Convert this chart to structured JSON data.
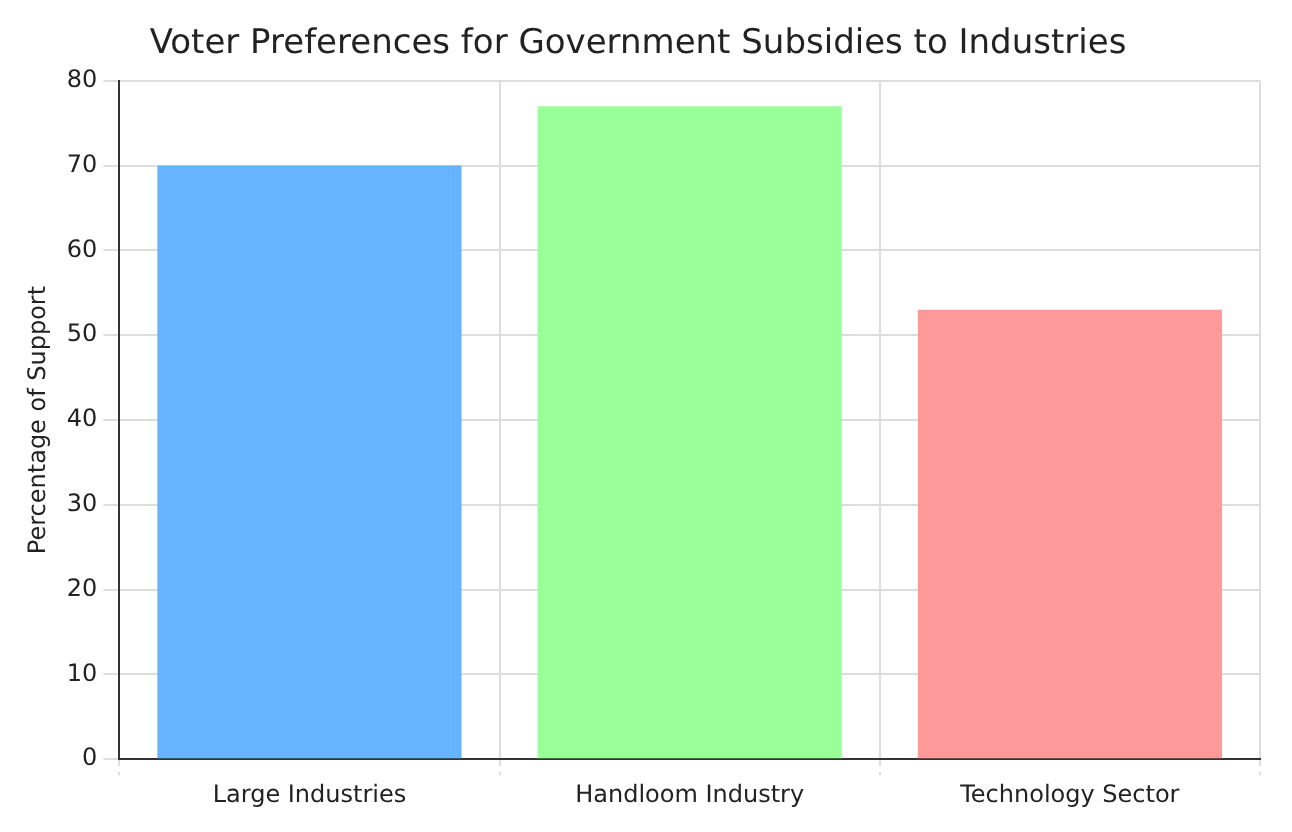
{
  "chart_data": {
    "type": "bar",
    "title": "Voter Preferences for Government Subsidies to Industries",
    "ylabel": "Percentage of Support",
    "categories": [
      "Large Industries",
      "Handloom Industry",
      "Technology Sector"
    ],
    "values": [
      70,
      77,
      53
    ],
    "colors": [
      "#66b3ff",
      "#99ff99",
      "#ff9999"
    ],
    "ylim": [
      0,
      80
    ],
    "yticks": [
      0,
      10,
      20,
      30,
      40,
      50,
      60,
      70,
      80
    ],
    "grid": true
  }
}
